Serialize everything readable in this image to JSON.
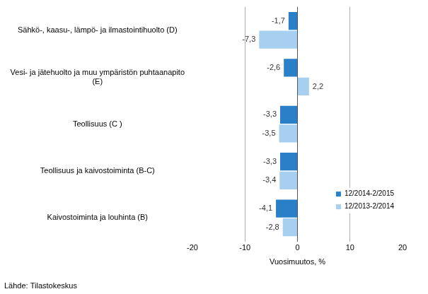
{
  "chart_data": {
    "type": "bar",
    "orientation": "horizontal",
    "categories": [
      "Sähkö-, kaasu-, lämpö- ja ilmastointihuolto (D)",
      "Vesi- ja jätehuolto ja muu ympäristön puhtaanapito (E)",
      "Teollisuus (C )",
      "Teollisuus ja kaivostoiminta (B-C)",
      "Kaivostoiminta ja louhinta (B)"
    ],
    "series": [
      {
        "name": "12/2014-2/2015",
        "color": "#2a7fc9",
        "values": [
          -1.7,
          -2.6,
          -3.3,
          -3.3,
          -4.1
        ],
        "value_labels": [
          "-1,7",
          "-2,6",
          "-3,3",
          "-3,3",
          "-4,1"
        ]
      },
      {
        "name": "12/2013-2/2014",
        "color": "#a6cff0",
        "values": [
          -7.3,
          2.2,
          -3.5,
          -3.4,
          -2.8
        ],
        "value_labels": [
          "-7,3",
          "2,2",
          "-3,5",
          "-3,4",
          "-2,8"
        ]
      }
    ],
    "x_label": "Vuosimuutos, %",
    "source": "Lähde: Tilastokeskus",
    "xlim": [
      -20,
      20
    ],
    "xticks": [
      -20,
      -10,
      0,
      10,
      20
    ],
    "grid": true,
    "legend": "lower right",
    "data_labels": true
  }
}
